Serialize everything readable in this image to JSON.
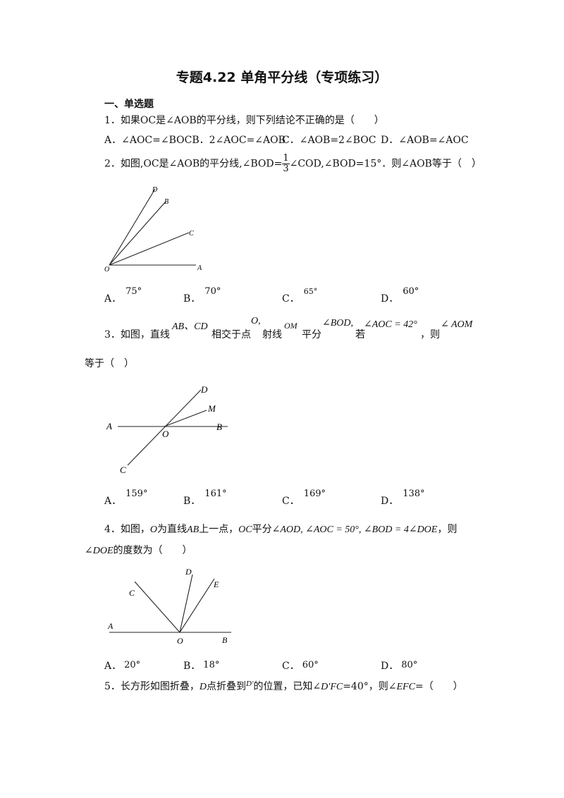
{
  "title": "专题4.22  单角平分线（专项练习）",
  "section": "一、单选题",
  "q1": {
    "text": "1．如果OC是∠AOB的平分线，则下列结论不正确的是（　　）",
    "options": [
      "A．∠AOC=∠BOCB．2∠AOC=∠AOB",
      "C．∠AOB=2∠BOC",
      "D．∠AOB=∠AOC"
    ]
  },
  "q2": {
    "prefix": "2．如图,OC是∠AOB的平分线,∠BOD=",
    "frac_num": "1",
    "frac_den": "3",
    "suffix": "∠COD,∠BOD=15°．则∠AOB等于（　）",
    "labels": [
      "D",
      "B",
      "C",
      "O",
      "A"
    ],
    "options": [
      {
        "letter": "A．",
        "value": "75°"
      },
      {
        "letter": "B．",
        "value": "70°"
      },
      {
        "letter": "C．",
        "value": "65°"
      },
      {
        "letter": "D．",
        "value": "60°"
      }
    ]
  },
  "q3": {
    "t1": "3．如图，直线",
    "m1": "AB、CD",
    "t2": "相交于点",
    "m2": "O,",
    "t3": "射线",
    "m3": "OM",
    "t4": "平分",
    "m4": "∠BOD,",
    "t5": "若",
    "m5": "∠AOC = 42°",
    "t6": "，则",
    "m6": "∠ AOM",
    "line2": "等于（　）",
    "labels": [
      "D",
      "M",
      "A",
      "O",
      "B",
      "C"
    ],
    "options": [
      {
        "letter": "A．",
        "value": "159°"
      },
      {
        "letter": "B．",
        "value": "161°"
      },
      {
        "letter": "C．",
        "value": "169°"
      },
      {
        "letter": "D．",
        "value": "138°"
      }
    ]
  },
  "q4": {
    "t1": "4．如图，",
    "m1": "O",
    "t2": "为直线",
    "m2": "AB",
    "t3": "上一点，",
    "m3": "OC",
    "t4": "平分",
    "m4": "∠AOD, ∠AOC = 50°, ∠BOD = 4∠DOE",
    "t5": "，则",
    "line2_math": "∠DOE",
    "line2_text": "的度数为（　　）",
    "labels": [
      "D",
      "E",
      "C",
      "A",
      "O",
      "B"
    ],
    "options": [
      {
        "letter": "A．",
        "value": "20°"
      },
      {
        "letter": "B．",
        "value": "18°"
      },
      {
        "letter": "C．",
        "value": "60°"
      },
      {
        "letter": "D．",
        "value": "80°"
      }
    ]
  },
  "q5": {
    "t1": "5．长方形如图折叠，",
    "m1": "D",
    "t2": "点折叠到",
    "m2": "D′",
    "t3": "的位置，已知∠",
    "m3": "D′FC",
    "t4": "=40°，则",
    "m4": "∠EFC",
    "t5": "=（　　）"
  }
}
